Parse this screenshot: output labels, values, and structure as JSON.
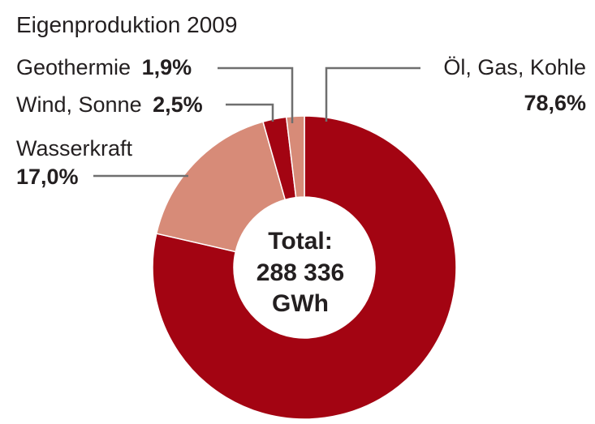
{
  "chart_data": {
    "type": "pie",
    "title": "Eigenproduktion 2009",
    "slices": [
      {
        "label": "Öl, Gas, Kohle",
        "value": 78.6,
        "value_label": "78,6%",
        "color": "#a30412"
      },
      {
        "label": "Wasserkraft",
        "value": 17.0,
        "value_label": "17,0%",
        "color": "#d78b78"
      },
      {
        "label": "Wind, Sonne",
        "value": 2.5,
        "value_label": "2,5%",
        "color": "#a30412"
      },
      {
        "label": "Geothermie",
        "value": 1.9,
        "value_label": "1,9%",
        "color": "#d78b78"
      }
    ],
    "center": {
      "line1": "Total:",
      "line2": "288 336",
      "line3": "GWh"
    },
    "legend": "none"
  }
}
